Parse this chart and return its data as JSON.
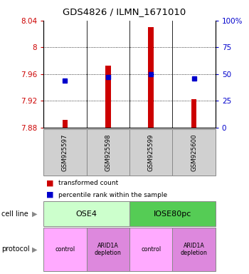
{
  "title": "GDS4826 / ILMN_1671010",
  "samples": [
    "GSM925597",
    "GSM925598",
    "GSM925599",
    "GSM925600"
  ],
  "bar_values": [
    7.891,
    7.972,
    8.03,
    7.922
  ],
  "bar_base": 7.88,
  "blue_dot_values": [
    44,
    47,
    50,
    46
  ],
  "ylim_left": [
    7.88,
    8.04
  ],
  "ylim_right": [
    0,
    100
  ],
  "yticks_left": [
    7.88,
    7.92,
    7.96,
    8.0,
    8.04
  ],
  "yticks_left_labels": [
    "7.88",
    "7.92",
    "7.96",
    "8",
    "8.04"
  ],
  "yticks_right": [
    0,
    25,
    50,
    75,
    100
  ],
  "yticks_right_labels": [
    "0",
    "25",
    "50",
    "75",
    "100%"
  ],
  "bar_color": "#cc0000",
  "dot_color": "#0000cc",
  "cell_line_labels": [
    "OSE4",
    "IOSE80pc"
  ],
  "cell_line_spans": [
    [
      0,
      2
    ],
    [
      2,
      4
    ]
  ],
  "cell_line_colors": [
    "#ccffcc",
    "#55cc55"
  ],
  "protocol_labels": [
    "control",
    "ARID1A\ndepletion",
    "control",
    "ARID1A\ndepletion"
  ],
  "protocol_colors": [
    "#ffaaff",
    "#dd88dd",
    "#ffaaff",
    "#dd88dd"
  ],
  "legend_bar_label": "transformed count",
  "legend_dot_label": "percentile rank within the sample",
  "left_axis_color": "#cc0000",
  "right_axis_color": "#0000cc"
}
